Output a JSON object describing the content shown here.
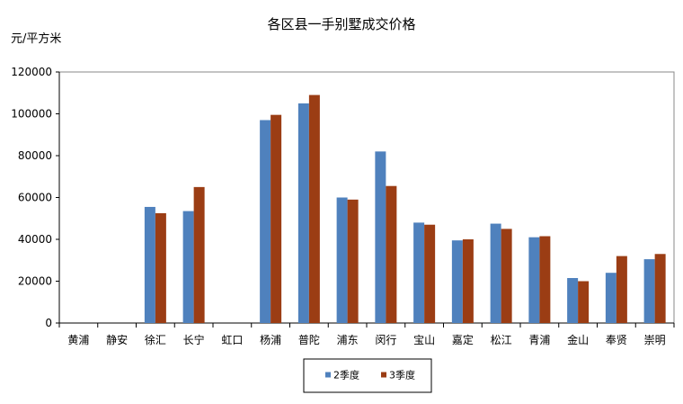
{
  "chart_data": {
    "type": "bar",
    "title": "各区县一手别墅成交价格",
    "ylabel": "元/平方米",
    "xlabel": "",
    "ylim": [
      0,
      120000
    ],
    "yticks": [
      "0",
      "20000",
      "40000",
      "60000",
      "80000",
      "100000",
      "120000"
    ],
    "grid": false,
    "legend_position": "bottom",
    "categories": [
      "黄浦",
      "静安",
      "徐汇",
      "长宁",
      "虹口",
      "杨浦",
      "普陀",
      "浦东",
      "闵行",
      "宝山",
      "嘉定",
      "松江",
      "青浦",
      "金山",
      "奉贤",
      "崇明"
    ],
    "series": [
      {
        "name": "2季度",
        "color": "#4F81BD",
        "values": [
          null,
          null,
          55500,
          53500,
          null,
          97000,
          105000,
          60000,
          82000,
          48000,
          39500,
          47500,
          41000,
          21500,
          24000,
          30500
        ]
      },
      {
        "name": "3季度",
        "color": "#9B3D14",
        "values": [
          null,
          null,
          52500,
          65000,
          null,
          99500,
          109000,
          59000,
          65500,
          47000,
          40000,
          45000,
          41500,
          20000,
          32000,
          33000
        ]
      }
    ]
  }
}
